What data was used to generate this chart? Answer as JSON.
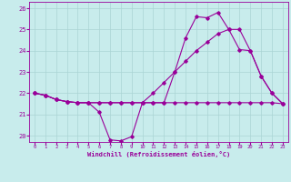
{
  "xlabel": "Windchill (Refroidissement éolien,°C)",
  "xlim": [
    -0.5,
    23.5
  ],
  "ylim": [
    19.7,
    26.3
  ],
  "yticks": [
    20,
    21,
    22,
    23,
    24,
    25,
    26
  ],
  "xticks": [
    0,
    1,
    2,
    3,
    4,
    5,
    6,
    7,
    8,
    9,
    10,
    11,
    12,
    13,
    14,
    15,
    16,
    17,
    18,
    19,
    20,
    21,
    22,
    23
  ],
  "bg_color": "#c8ecec",
  "grid_color": "#aad4d4",
  "line_color": "#990099",
  "line1_y": [
    22.0,
    21.9,
    21.7,
    21.6,
    21.55,
    21.55,
    21.1,
    19.8,
    19.75,
    19.95,
    21.55,
    21.55,
    21.55,
    23.0,
    24.6,
    25.6,
    25.55,
    25.8,
    25.0,
    24.05,
    24.0,
    22.8,
    22.0,
    21.5
  ],
  "line2_y": [
    22.0,
    21.9,
    21.7,
    21.6,
    21.55,
    21.55,
    21.55,
    21.55,
    21.55,
    21.55,
    21.55,
    21.55,
    21.55,
    21.55,
    21.55,
    21.55,
    21.55,
    21.55,
    21.55,
    21.55,
    21.55,
    21.55,
    21.55,
    21.5
  ],
  "line3_y": [
    22.0,
    21.9,
    21.7,
    21.6,
    21.55,
    21.55,
    21.55,
    21.55,
    21.55,
    21.55,
    21.55,
    22.0,
    22.5,
    23.0,
    23.5,
    24.0,
    24.4,
    24.8,
    25.0,
    25.0,
    24.0,
    22.8,
    22.0,
    21.5
  ],
  "marker": "D",
  "markersize": 1.8,
  "linewidth": 0.8
}
